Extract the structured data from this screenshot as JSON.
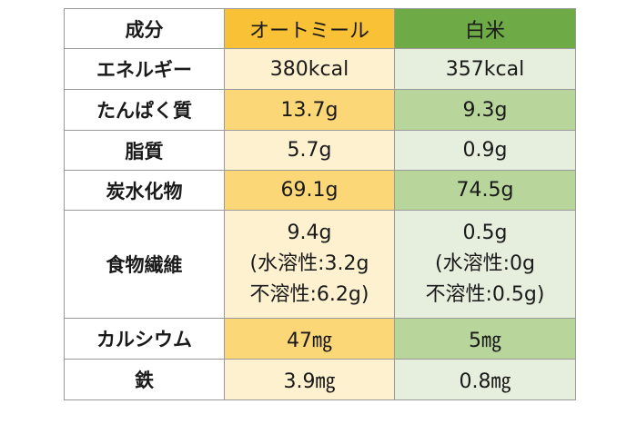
{
  "table": {
    "header": {
      "label": "成分",
      "oat": "オートミール",
      "rice": "白米"
    },
    "rows": [
      {
        "label": "エネルギー",
        "oat": "380kcal",
        "rice": "357kcal"
      },
      {
        "label": "たんぱく質",
        "oat": "13.7g",
        "rice": "9.3g"
      },
      {
        "label": "脂質",
        "oat": "5.7g",
        "rice": "0.9g"
      },
      {
        "label": "炭水化物",
        "oat": "69.1g",
        "rice": "74.5g"
      },
      {
        "label": "食物繊維",
        "oat_lines": [
          "9.4g",
          "(水溶性:3.2g",
          "不溶性:6.2g)"
        ],
        "rice_lines": [
          "0.5g",
          "(水溶性:0g",
          "不溶性:0.5g)"
        ]
      },
      {
        "label": "カルシウム",
        "oat": "47㎎",
        "rice": "5㎎"
      },
      {
        "label": "鉄",
        "oat": "3.9㎎",
        "rice": "0.8㎎"
      }
    ]
  },
  "colors": {
    "header_oat": "#f9c236",
    "header_rice": "#6eaa46",
    "oat_light": "#fdf1d0",
    "oat_dark": "#fcd777",
    "rice_light": "#e6efdd",
    "rice_dark": "#b8d69c"
  }
}
